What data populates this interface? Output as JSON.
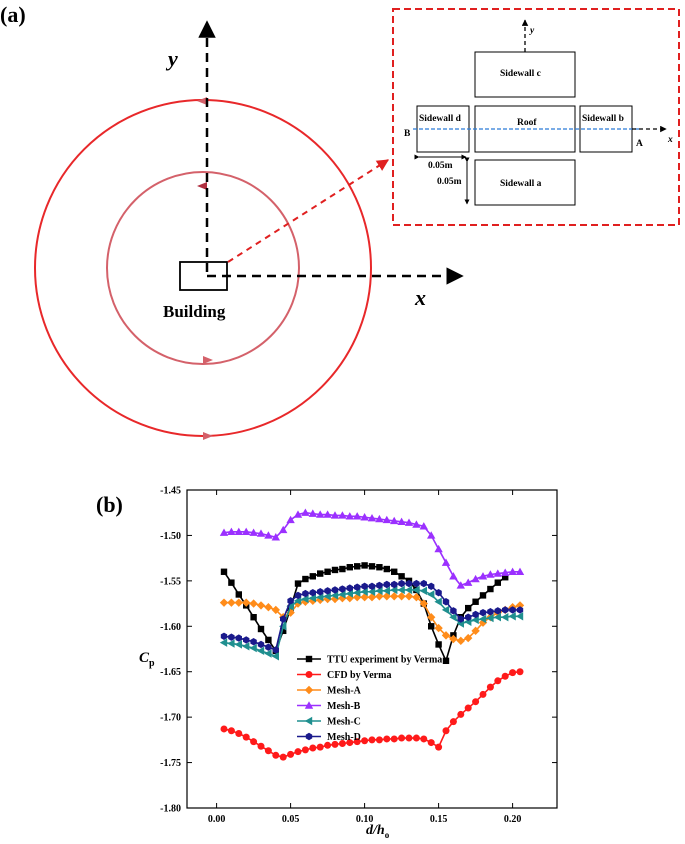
{
  "panel_a": {
    "label": "(a)",
    "y_axis_label": "y",
    "x_axis_label": "x",
    "building_label": "Building",
    "inset": {
      "y_label": "y",
      "x_label": "x",
      "point_a": "A",
      "point_b": "B",
      "roof": "Roof",
      "sidewall_a": "Sidewall a",
      "sidewall_b": "Sidewall b",
      "sidewall_c": "Sidewall c",
      "sidewall_d": "Sidewall d",
      "dim_horizontal": "0.05m",
      "dim_vertical": "0.05m"
    },
    "colors": {
      "outer_circle": "#e8282a",
      "inner_circle": "#d4616a",
      "inset_border": "#e02020",
      "cut_line": "#2b7bd6"
    }
  },
  "panel_b": {
    "label": "(b)",
    "chart_data": {
      "type": "line",
      "xlabel": "d/h",
      "xlabel_sub": "o",
      "ylabel": "C",
      "ylabel_sub": "p",
      "xlim": [
        -0.02,
        0.23
      ],
      "ylim": [
        -1.8,
        -1.45
      ],
      "xticks": [
        0.0,
        0.05,
        0.1,
        0.15,
        0.2
      ],
      "xtick_labels": [
        "0.00",
        "0.05",
        "0.10",
        "0.15",
        "0.20"
      ],
      "yticks": [
        -1.45,
        -1.5,
        -1.55,
        -1.6,
        -1.65,
        -1.7,
        -1.75,
        -1.8
      ],
      "ytick_labels": [
        "-1.45",
        "-1.50",
        "-1.55",
        "-1.60",
        "-1.65",
        "-1.70",
        "-1.75",
        "-1.80"
      ],
      "legend_position": "lower-left",
      "series": [
        {
          "name": "TTU experiment by Verma",
          "color": "#000000",
          "marker": "square",
          "x": [
            0.005,
            0.01,
            0.015,
            0.02,
            0.025,
            0.03,
            0.035,
            0.04,
            0.045,
            0.05,
            0.055,
            0.06,
            0.065,
            0.07,
            0.075,
            0.08,
            0.085,
            0.09,
            0.095,
            0.1,
            0.105,
            0.11,
            0.115,
            0.12,
            0.125,
            0.13,
            0.135,
            0.14,
            0.145,
            0.15,
            0.155,
            0.16,
            0.165,
            0.17,
            0.175,
            0.18,
            0.185,
            0.19,
            0.195
          ],
          "y": [
            -1.54,
            -1.552,
            -1.565,
            -1.577,
            -1.59,
            -1.603,
            -1.615,
            -1.627,
            -1.605,
            -1.58,
            -1.553,
            -1.548,
            -1.545,
            -1.542,
            -1.54,
            -1.538,
            -1.537,
            -1.535,
            -1.534,
            -1.533,
            -1.534,
            -1.535,
            -1.537,
            -1.54,
            -1.545,
            -1.55,
            -1.56,
            -1.575,
            -1.6,
            -1.62,
            -1.638,
            -1.61,
            -1.59,
            -1.58,
            -1.573,
            -1.566,
            -1.559,
            -1.552,
            -1.546
          ]
        },
        {
          "name": "CFD by Verma",
          "color": "#ff1a1a",
          "marker": "circle",
          "x": [
            0.005,
            0.01,
            0.015,
            0.02,
            0.025,
            0.03,
            0.035,
            0.04,
            0.045,
            0.05,
            0.055,
            0.06,
            0.065,
            0.07,
            0.075,
            0.08,
            0.085,
            0.09,
            0.095,
            0.1,
            0.105,
            0.11,
            0.115,
            0.12,
            0.125,
            0.13,
            0.135,
            0.14,
            0.145,
            0.15,
            0.155,
            0.16,
            0.165,
            0.17,
            0.175,
            0.18,
            0.185,
            0.19,
            0.195,
            0.2,
            0.205
          ],
          "y": [
            -1.713,
            -1.715,
            -1.718,
            -1.722,
            -1.727,
            -1.732,
            -1.737,
            -1.742,
            -1.744,
            -1.741,
            -1.738,
            -1.736,
            -1.734,
            -1.733,
            -1.731,
            -1.73,
            -1.729,
            -1.728,
            -1.727,
            -1.726,
            -1.725,
            -1.725,
            -1.724,
            -1.724,
            -1.723,
            -1.723,
            -1.723,
            -1.724,
            -1.728,
            -1.733,
            -1.715,
            -1.705,
            -1.697,
            -1.69,
            -1.683,
            -1.675,
            -1.667,
            -1.66,
            -1.655,
            -1.651,
            -1.65
          ]
        },
        {
          "name": "Mesh-A",
          "color": "#ff8c1a",
          "marker": "diamond",
          "x": [
            0.005,
            0.01,
            0.015,
            0.02,
            0.025,
            0.03,
            0.035,
            0.04,
            0.045,
            0.05,
            0.055,
            0.06,
            0.065,
            0.07,
            0.075,
            0.08,
            0.085,
            0.09,
            0.095,
            0.1,
            0.105,
            0.11,
            0.115,
            0.12,
            0.125,
            0.13,
            0.135,
            0.14,
            0.145,
            0.15,
            0.155,
            0.16,
            0.165,
            0.17,
            0.175,
            0.18,
            0.185,
            0.19,
            0.195,
            0.2,
            0.205
          ],
          "y": [
            -1.574,
            -1.574,
            -1.574,
            -1.574,
            -1.575,
            -1.577,
            -1.579,
            -1.582,
            -1.59,
            -1.585,
            -1.575,
            -1.573,
            -1.572,
            -1.571,
            -1.57,
            -1.57,
            -1.569,
            -1.569,
            -1.568,
            -1.568,
            -1.568,
            -1.567,
            -1.567,
            -1.567,
            -1.567,
            -1.567,
            -1.568,
            -1.575,
            -1.59,
            -1.602,
            -1.61,
            -1.614,
            -1.616,
            -1.613,
            -1.605,
            -1.596,
            -1.59,
            -1.585,
            -1.582,
            -1.579,
            -1.577
          ]
        },
        {
          "name": "Mesh-B",
          "color": "#9b30ff",
          "marker": "triangle-up",
          "x": [
            0.005,
            0.01,
            0.015,
            0.02,
            0.025,
            0.03,
            0.035,
            0.04,
            0.045,
            0.05,
            0.055,
            0.06,
            0.065,
            0.07,
            0.075,
            0.08,
            0.085,
            0.09,
            0.095,
            0.1,
            0.105,
            0.11,
            0.115,
            0.12,
            0.125,
            0.13,
            0.135,
            0.14,
            0.145,
            0.15,
            0.155,
            0.16,
            0.165,
            0.17,
            0.175,
            0.18,
            0.185,
            0.19,
            0.195,
            0.2,
            0.205
          ],
          "y": [
            -1.497,
            -1.496,
            -1.496,
            -1.496,
            -1.497,
            -1.498,
            -1.5,
            -1.502,
            -1.494,
            -1.483,
            -1.477,
            -1.475,
            -1.476,
            -1.477,
            -1.477,
            -1.478,
            -1.478,
            -1.479,
            -1.479,
            -1.48,
            -1.481,
            -1.482,
            -1.483,
            -1.484,
            -1.485,
            -1.486,
            -1.488,
            -1.49,
            -1.5,
            -1.515,
            -1.53,
            -1.545,
            -1.555,
            -1.552,
            -1.548,
            -1.545,
            -1.543,
            -1.542,
            -1.541,
            -1.54,
            -1.54
          ]
        },
        {
          "name": "Mesh-C",
          "color": "#1f8f8f",
          "marker": "triangle-left",
          "x": [
            0.005,
            0.01,
            0.015,
            0.02,
            0.025,
            0.03,
            0.035,
            0.04,
            0.045,
            0.05,
            0.055,
            0.06,
            0.065,
            0.07,
            0.075,
            0.08,
            0.085,
            0.09,
            0.095,
            0.1,
            0.105,
            0.11,
            0.115,
            0.12,
            0.125,
            0.13,
            0.135,
            0.14,
            0.145,
            0.15,
            0.155,
            0.16,
            0.165,
            0.17,
            0.175,
            0.18,
            0.185,
            0.19,
            0.195,
            0.2,
            0.205
          ],
          "y": [
            -1.618,
            -1.619,
            -1.62,
            -1.622,
            -1.624,
            -1.627,
            -1.63,
            -1.633,
            -1.6,
            -1.578,
            -1.572,
            -1.57,
            -1.569,
            -1.568,
            -1.567,
            -1.566,
            -1.565,
            -1.564,
            -1.563,
            -1.562,
            -1.562,
            -1.561,
            -1.561,
            -1.56,
            -1.56,
            -1.56,
            -1.56,
            -1.561,
            -1.565,
            -1.573,
            -1.582,
            -1.59,
            -1.597,
            -1.595,
            -1.593,
            -1.592,
            -1.591,
            -1.59,
            -1.59,
            -1.589,
            -1.589
          ]
        },
        {
          "name": "Mesh-D",
          "color": "#1a1a8c",
          "marker": "hexagon",
          "x": [
            0.005,
            0.01,
            0.015,
            0.02,
            0.025,
            0.03,
            0.035,
            0.04,
            0.045,
            0.05,
            0.055,
            0.06,
            0.065,
            0.07,
            0.075,
            0.08,
            0.085,
            0.09,
            0.095,
            0.1,
            0.105,
            0.11,
            0.115,
            0.12,
            0.125,
            0.13,
            0.135,
            0.14,
            0.145,
            0.15,
            0.155,
            0.16,
            0.165,
            0.17,
            0.175,
            0.18,
            0.185,
            0.19,
            0.195,
            0.2,
            0.205
          ],
          "y": [
            -1.611,
            -1.612,
            -1.613,
            -1.615,
            -1.617,
            -1.62,
            -1.623,
            -1.626,
            -1.592,
            -1.572,
            -1.566,
            -1.564,
            -1.563,
            -1.562,
            -1.561,
            -1.56,
            -1.559,
            -1.558,
            -1.557,
            -1.556,
            -1.556,
            -1.555,
            -1.554,
            -1.554,
            -1.553,
            -1.553,
            -1.553,
            -1.553,
            -1.556,
            -1.563,
            -1.573,
            -1.583,
            -1.592,
            -1.59,
            -1.587,
            -1.585,
            -1.584,
            -1.583,
            -1.582,
            -1.582,
            -1.582
          ]
        }
      ]
    }
  }
}
